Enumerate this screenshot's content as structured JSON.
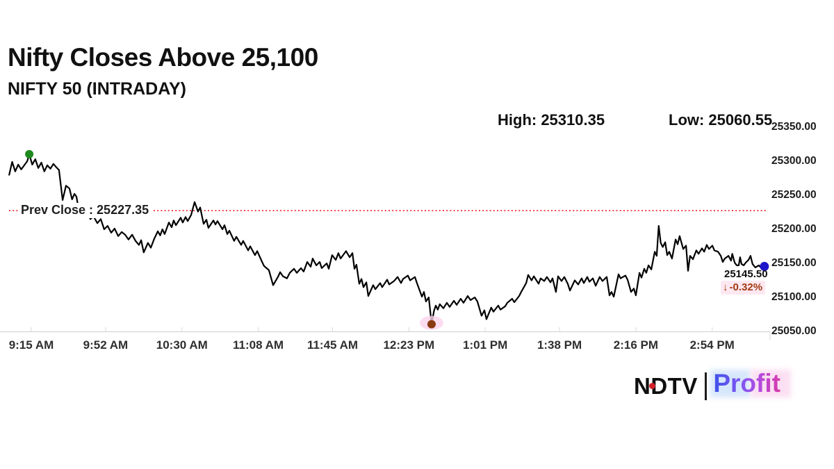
{
  "header": {
    "title": "Nifty Closes Above 25,100",
    "subtitle": "NIFTY 50 (INTRADAY)",
    "high_label": "High: 25310.35",
    "low_label": "Low: 25060.55"
  },
  "chart_data": {
    "type": "line",
    "title": "NIFTY 50 (INTRADAY)",
    "high": 25310.35,
    "low": 25060.55,
    "prev_close": 25227.35,
    "last_price": 25145.5,
    "change_pct": -0.32,
    "prev_close_label": "Prev Close : 25227.35",
    "last_price_label": "25145.50",
    "change_label": "-0.32%",
    "down_arrow": "↓",
    "ylim": [
      25050,
      25350
    ],
    "y_tick_step": 50,
    "y_tick_labels": [
      "25350.00",
      "25300.00",
      "25250.00",
      "25200.00",
      "25150.00",
      "25100.00",
      "25050.00"
    ],
    "x_ticks": [
      {
        "label": "9:15 AM",
        "t": 0
      },
      {
        "label": "9:52 AM",
        "t": 37
      },
      {
        "label": "10:30 AM",
        "t": 75
      },
      {
        "label": "11:08 AM",
        "t": 113
      },
      {
        "label": "11:45 AM",
        "t": 150
      },
      {
        "label": "12:23 PM",
        "t": 188
      },
      {
        "label": "1:01 PM",
        "t": 226
      },
      {
        "label": "1:38 PM",
        "t": 263
      },
      {
        "label": "2:16 PM",
        "t": 301
      },
      {
        "label": "2:54 PM",
        "t": 339
      }
    ],
    "colors": {
      "line": "#000000",
      "prev_close_line": "#f01828",
      "high_marker": "#1e8a1e",
      "low_marker": "#8a3a10",
      "low_halo": "#fbd3ee",
      "last_marker": "#1f16c9",
      "axis": "#cfcfcf",
      "change_text": "#a23a10",
      "change_bg": "#fde8f1"
    },
    "markers": [
      {
        "name": "high-marker",
        "t": -1,
        "p": 25310.35,
        "color": "#1e8a1e",
        "r": 6
      },
      {
        "name": "low-marker",
        "t": 199.3,
        "p": 25060.55,
        "color": "#8a3a10",
        "r": 6,
        "halo": "#fbd3ee"
      },
      {
        "name": "last-marker",
        "t": 365,
        "p": 25145.5,
        "color": "#1f16c9",
        "r": 6.5
      }
    ],
    "series": [
      {
        "name": "NIFTY 50",
        "points": [
          [
            -11,
            25280
          ],
          [
            -9.5,
            25299
          ],
          [
            -8,
            25285
          ],
          [
            -6.5,
            25295
          ],
          [
            -5,
            25288
          ],
          [
            -3.5,
            25294
          ],
          [
            -2,
            25300
          ],
          [
            -1,
            25310.35
          ],
          [
            0.5,
            25295
          ],
          [
            2,
            25303
          ],
          [
            3.5,
            25290
          ],
          [
            5,
            25298
          ],
          [
            6.5,
            25285
          ],
          [
            8,
            25294
          ],
          [
            9.5,
            25289
          ],
          [
            11,
            25296
          ],
          [
            12.5,
            25291
          ],
          [
            13.8,
            25287
          ],
          [
            15.6,
            25243
          ],
          [
            17.3,
            25264
          ],
          [
            19,
            25260
          ],
          [
            20.3,
            25244
          ],
          [
            21.5,
            25252
          ],
          [
            22.5,
            25248
          ],
          [
            23.5,
            25231
          ],
          [
            24.9,
            25236
          ],
          [
            26,
            25220
          ],
          [
            27.7,
            25226
          ],
          [
            29.4,
            25215
          ],
          [
            31,
            25219
          ],
          [
            32.9,
            25209
          ],
          [
            34.6,
            25215
          ],
          [
            36.3,
            25200
          ],
          [
            38,
            25205
          ],
          [
            39.8,
            25195
          ],
          [
            41.5,
            25201
          ],
          [
            43.3,
            25190
          ],
          [
            45,
            25196
          ],
          [
            46.7,
            25192
          ],
          [
            48.4,
            25185
          ],
          [
            50.2,
            25192
          ],
          [
            51.9,
            25183
          ],
          [
            53.6,
            25177
          ],
          [
            54.7,
            25184
          ],
          [
            56,
            25166
          ],
          [
            58.1,
            25180
          ],
          [
            59.5,
            25173
          ],
          [
            61.2,
            25186
          ],
          [
            63,
            25197
          ],
          [
            64.2,
            25191
          ],
          [
            65.3,
            25200
          ],
          [
            66.4,
            25193
          ],
          [
            68.5,
            25210
          ],
          [
            69.9,
            25203
          ],
          [
            70.9,
            25213
          ],
          [
            72,
            25206
          ],
          [
            74.4,
            25217
          ],
          [
            75.4,
            25210
          ],
          [
            76.8,
            25218
          ],
          [
            77.9,
            25212
          ],
          [
            79.6,
            25221
          ],
          [
            81.3,
            25240
          ],
          [
            83,
            25226
          ],
          [
            84.1,
            25232
          ],
          [
            85.8,
            25208
          ],
          [
            87.2,
            25214
          ],
          [
            88.2,
            25202
          ],
          [
            90.7,
            25213
          ],
          [
            91.7,
            25207
          ],
          [
            92.7,
            25212
          ],
          [
            95.2,
            25200
          ],
          [
            96.2,
            25206
          ],
          [
            97.6,
            25193
          ],
          [
            98.6,
            25198
          ],
          [
            101,
            25183
          ],
          [
            102.1,
            25189
          ],
          [
            104.5,
            25177
          ],
          [
            105.5,
            25183
          ],
          [
            108,
            25169
          ],
          [
            109,
            25175
          ],
          [
            111.4,
            25162
          ],
          [
            112.5,
            25168
          ],
          [
            114.9,
            25152
          ],
          [
            115.9,
            25146
          ],
          [
            118.3,
            25140
          ],
          [
            120.4,
            25118
          ],
          [
            122.8,
            25130
          ],
          [
            123.9,
            25137
          ],
          [
            125.3,
            25131
          ],
          [
            127.3,
            25128
          ],
          [
            128.7,
            25136
          ],
          [
            130.8,
            25142
          ],
          [
            132.2,
            25136
          ],
          [
            134.3,
            25143
          ],
          [
            135.6,
            25138
          ],
          [
            137.4,
            25152
          ],
          [
            139.1,
            25145
          ],
          [
            140.1,
            25157
          ],
          [
            141.9,
            25147
          ],
          [
            143.6,
            25152
          ],
          [
            144.6,
            25143
          ],
          [
            147.1,
            25150
          ],
          [
            148.1,
            25142
          ],
          [
            149.8,
            25162
          ],
          [
            151.6,
            25155
          ],
          [
            152.9,
            25165
          ],
          [
            154,
            25157
          ],
          [
            156.7,
            25168
          ],
          [
            158.5,
            25159
          ],
          [
            159.9,
            25165
          ],
          [
            160.9,
            25142
          ],
          [
            161.9,
            25148
          ],
          [
            163.3,
            25120
          ],
          [
            164.4,
            25127
          ],
          [
            165.4,
            25115
          ],
          [
            166.8,
            25122
          ],
          [
            167.8,
            25102
          ],
          [
            170.2,
            25118
          ],
          [
            171.3,
            25112
          ],
          [
            173.7,
            25121
          ],
          [
            174.7,
            25115
          ],
          [
            177.2,
            25126
          ],
          [
            178.2,
            25119
          ],
          [
            180.6,
            25124
          ],
          [
            182.4,
            25130
          ],
          [
            184.1,
            25121
          ],
          [
            185.1,
            25127
          ],
          [
            187.5,
            25132
          ],
          [
            188.6,
            25125
          ],
          [
            191,
            25130
          ],
          [
            192,
            25121
          ],
          [
            194.5,
            25101
          ],
          [
            195.5,
            25108
          ],
          [
            196.5,
            25094
          ],
          [
            197.9,
            25100
          ],
          [
            199,
            25070
          ],
          [
            199.3,
            25060.55
          ],
          [
            200.5,
            25080
          ],
          [
            201.4,
            25088
          ],
          [
            202.4,
            25082
          ],
          [
            203.4,
            25090
          ],
          [
            205.2,
            25084
          ],
          [
            206.9,
            25092
          ],
          [
            208.3,
            25086
          ],
          [
            210.4,
            25095
          ],
          [
            211.8,
            25089
          ],
          [
            213.8,
            25098
          ],
          [
            215.2,
            25092
          ],
          [
            217.3,
            25102
          ],
          [
            218.7,
            25096
          ],
          [
            220.8,
            25100
          ],
          [
            222.1,
            25094
          ],
          [
            224.2,
            25073
          ],
          [
            225.6,
            25081
          ],
          [
            226.6,
            25068
          ],
          [
            229,
            25085
          ],
          [
            230.1,
            25079
          ],
          [
            232.5,
            25088
          ],
          [
            233.6,
            25082
          ],
          [
            236,
            25087
          ],
          [
            237,
            25092
          ],
          [
            239.4,
            25098
          ],
          [
            240.5,
            25093
          ],
          [
            242.9,
            25102
          ],
          [
            243.9,
            25108
          ],
          [
            246.4,
            25121
          ],
          [
            247.4,
            25133
          ],
          [
            249.1,
            25125
          ],
          [
            250.2,
            25131
          ],
          [
            252.6,
            25120
          ],
          [
            253.6,
            25128
          ],
          [
            255.4,
            25124
          ],
          [
            256.7,
            25130
          ],
          [
            258.5,
            25122
          ],
          [
            259.5,
            25128
          ],
          [
            261.2,
            25108
          ],
          [
            262.3,
            25131
          ],
          [
            264,
            25124
          ],
          [
            265.4,
            25130
          ],
          [
            267.1,
            25120
          ],
          [
            268.2,
            25110
          ],
          [
            270.6,
            25125
          ],
          [
            272.3,
            25119
          ],
          [
            274,
            25128
          ],
          [
            275.1,
            25121
          ],
          [
            276.8,
            25130
          ],
          [
            277.9,
            25123
          ],
          [
            279.6,
            25128
          ],
          [
            281,
            25117
          ],
          [
            283,
            25130
          ],
          [
            284.4,
            25124
          ],
          [
            286.5,
            25130
          ],
          [
            287.9,
            25103
          ],
          [
            288.9,
            25108
          ],
          [
            290,
            25101
          ],
          [
            292.4,
            25134
          ],
          [
            293.4,
            25128
          ],
          [
            295.8,
            25132
          ],
          [
            296.9,
            25126
          ],
          [
            298.6,
            25108
          ],
          [
            300,
            25113
          ],
          [
            301,
            25103
          ],
          [
            302.8,
            25136
          ],
          [
            303.8,
            25129
          ],
          [
            305.2,
            25142
          ],
          [
            306.2,
            25136
          ],
          [
            307.3,
            25147
          ],
          [
            308.7,
            25141
          ],
          [
            310.4,
            25167
          ],
          [
            311.4,
            25161
          ],
          [
            312.4,
            25205
          ],
          [
            313.4,
            25180
          ],
          [
            314.4,
            25174
          ],
          [
            315.6,
            25181
          ],
          [
            316.6,
            25162
          ],
          [
            317.6,
            25167
          ],
          [
            319,
            25157
          ],
          [
            320.8,
            25185
          ],
          [
            321.8,
            25178
          ],
          [
            322.8,
            25190
          ],
          [
            324.6,
            25171
          ],
          [
            326,
            25176
          ],
          [
            327,
            25139
          ],
          [
            328,
            25161
          ],
          [
            329.4,
            25156
          ],
          [
            331.1,
            25169
          ],
          [
            332.2,
            25164
          ],
          [
            333.9,
            25172
          ],
          [
            335,
            25167
          ],
          [
            336.3,
            25177
          ],
          [
            337.4,
            25171
          ],
          [
            339.1,
            25176
          ],
          [
            340.1,
            25169
          ],
          [
            341.9,
            25167
          ],
          [
            343.3,
            25161
          ],
          [
            344.3,
            25152
          ],
          [
            345.3,
            25157
          ],
          [
            347.1,
            25161
          ],
          [
            348.4,
            25154
          ],
          [
            349,
            25164
          ],
          [
            350.2,
            25151
          ],
          [
            351.2,
            25147
          ],
          [
            352.2,
            25147
          ],
          [
            352.9,
            25159
          ],
          [
            353.6,
            25149
          ],
          [
            354.7,
            25147
          ],
          [
            355.7,
            25151
          ],
          [
            357.1,
            25155
          ],
          [
            358.1,
            25161
          ],
          [
            359.1,
            25149
          ],
          [
            360.5,
            25144
          ],
          [
            362.2,
            25147
          ],
          [
            363.5,
            25143
          ],
          [
            365,
            25145.5
          ]
        ]
      }
    ]
  },
  "footer": {
    "logo_ndtv": "NDTV",
    "logo_profit": "Profit"
  }
}
